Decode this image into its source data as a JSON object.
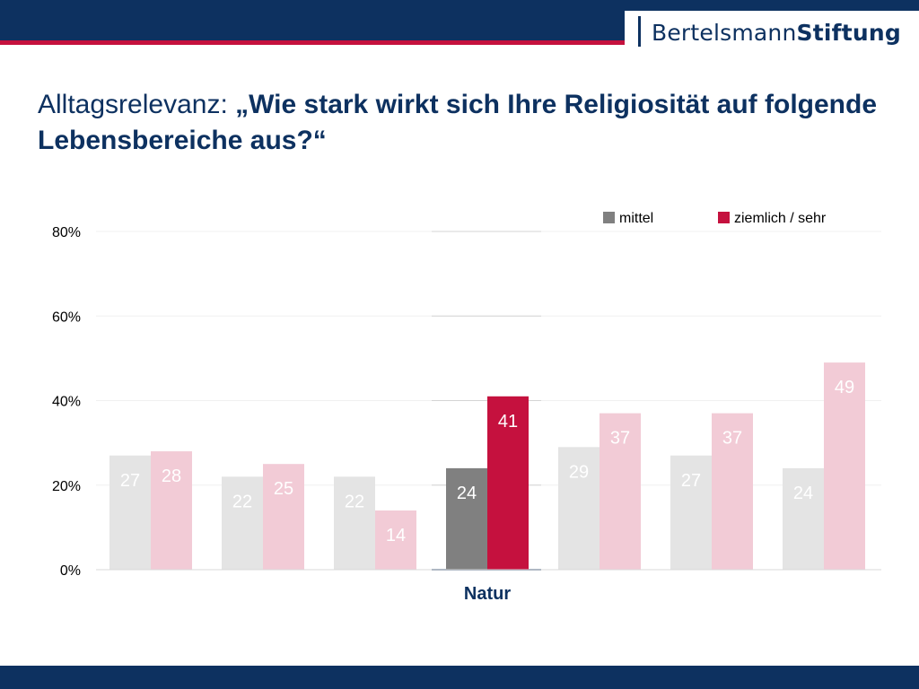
{
  "header": {
    "logo_part1": "Bertelsmann",
    "logo_part2": "Stiftung",
    "title_prefix": "Alltagsrelevanz: ",
    "title_question": "„Wie stark wirkt sich Ihre Religiosität auf folgende Lebensbereiche aus?“"
  },
  "colors": {
    "navy": "#0d3160",
    "red": "#c5113e",
    "mittel": "#808080",
    "mittel_faded": "#e4e4e4",
    "sehr": "#c5113e",
    "sehr_faded": "#f2cbd6"
  },
  "chart_data": {
    "type": "bar",
    "categories": [
      "",
      "",
      "",
      "Natur",
      "",
      "",
      ""
    ],
    "highlight_index": 3,
    "series": [
      {
        "name": "mittel",
        "values": [
          27,
          22,
          22,
          24,
          29,
          27,
          24
        ]
      },
      {
        "name": "ziemlich / sehr",
        "values": [
          28,
          25,
          14,
          41,
          37,
          37,
          49
        ]
      }
    ],
    "ylim": [
      0,
      80
    ],
    "yticks": [
      0,
      20,
      40,
      60,
      80
    ],
    "ytick_labels": [
      "0%",
      "20%",
      "40%",
      "60%",
      "80%"
    ],
    "legend_position": "top-right",
    "grid": true
  }
}
